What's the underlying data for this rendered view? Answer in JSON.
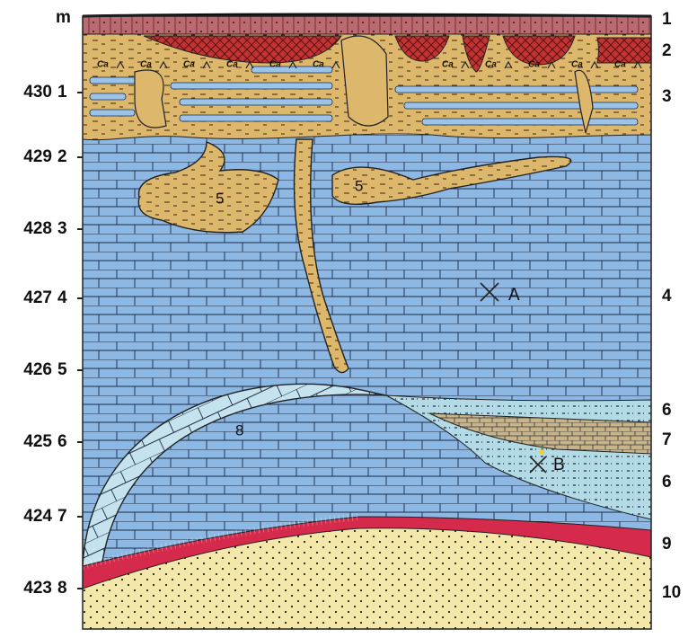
{
  "axis_unit": "m",
  "levels": [
    {
      "elevation": "430",
      "depth": "1"
    },
    {
      "elevation": "429",
      "depth": "2"
    },
    {
      "elevation": "428",
      "depth": "3"
    },
    {
      "elevation": "427",
      "depth": "4"
    },
    {
      "elevation": "426",
      "depth": "5"
    },
    {
      "elevation": "425",
      "depth": "6"
    },
    {
      "elevation": "424",
      "depth": "7"
    },
    {
      "elevation": "423",
      "depth": "8"
    }
  ],
  "layer_labels": [
    "1",
    "2",
    "3",
    "4",
    "6",
    "7",
    "6",
    "9",
    "10"
  ],
  "inline_labels": {
    "cave_fill_left": "5",
    "cave_fill_right": "5",
    "arch": "8",
    "site_a": "A",
    "site_b": "B"
  },
  "symbol": "Ca"
}
